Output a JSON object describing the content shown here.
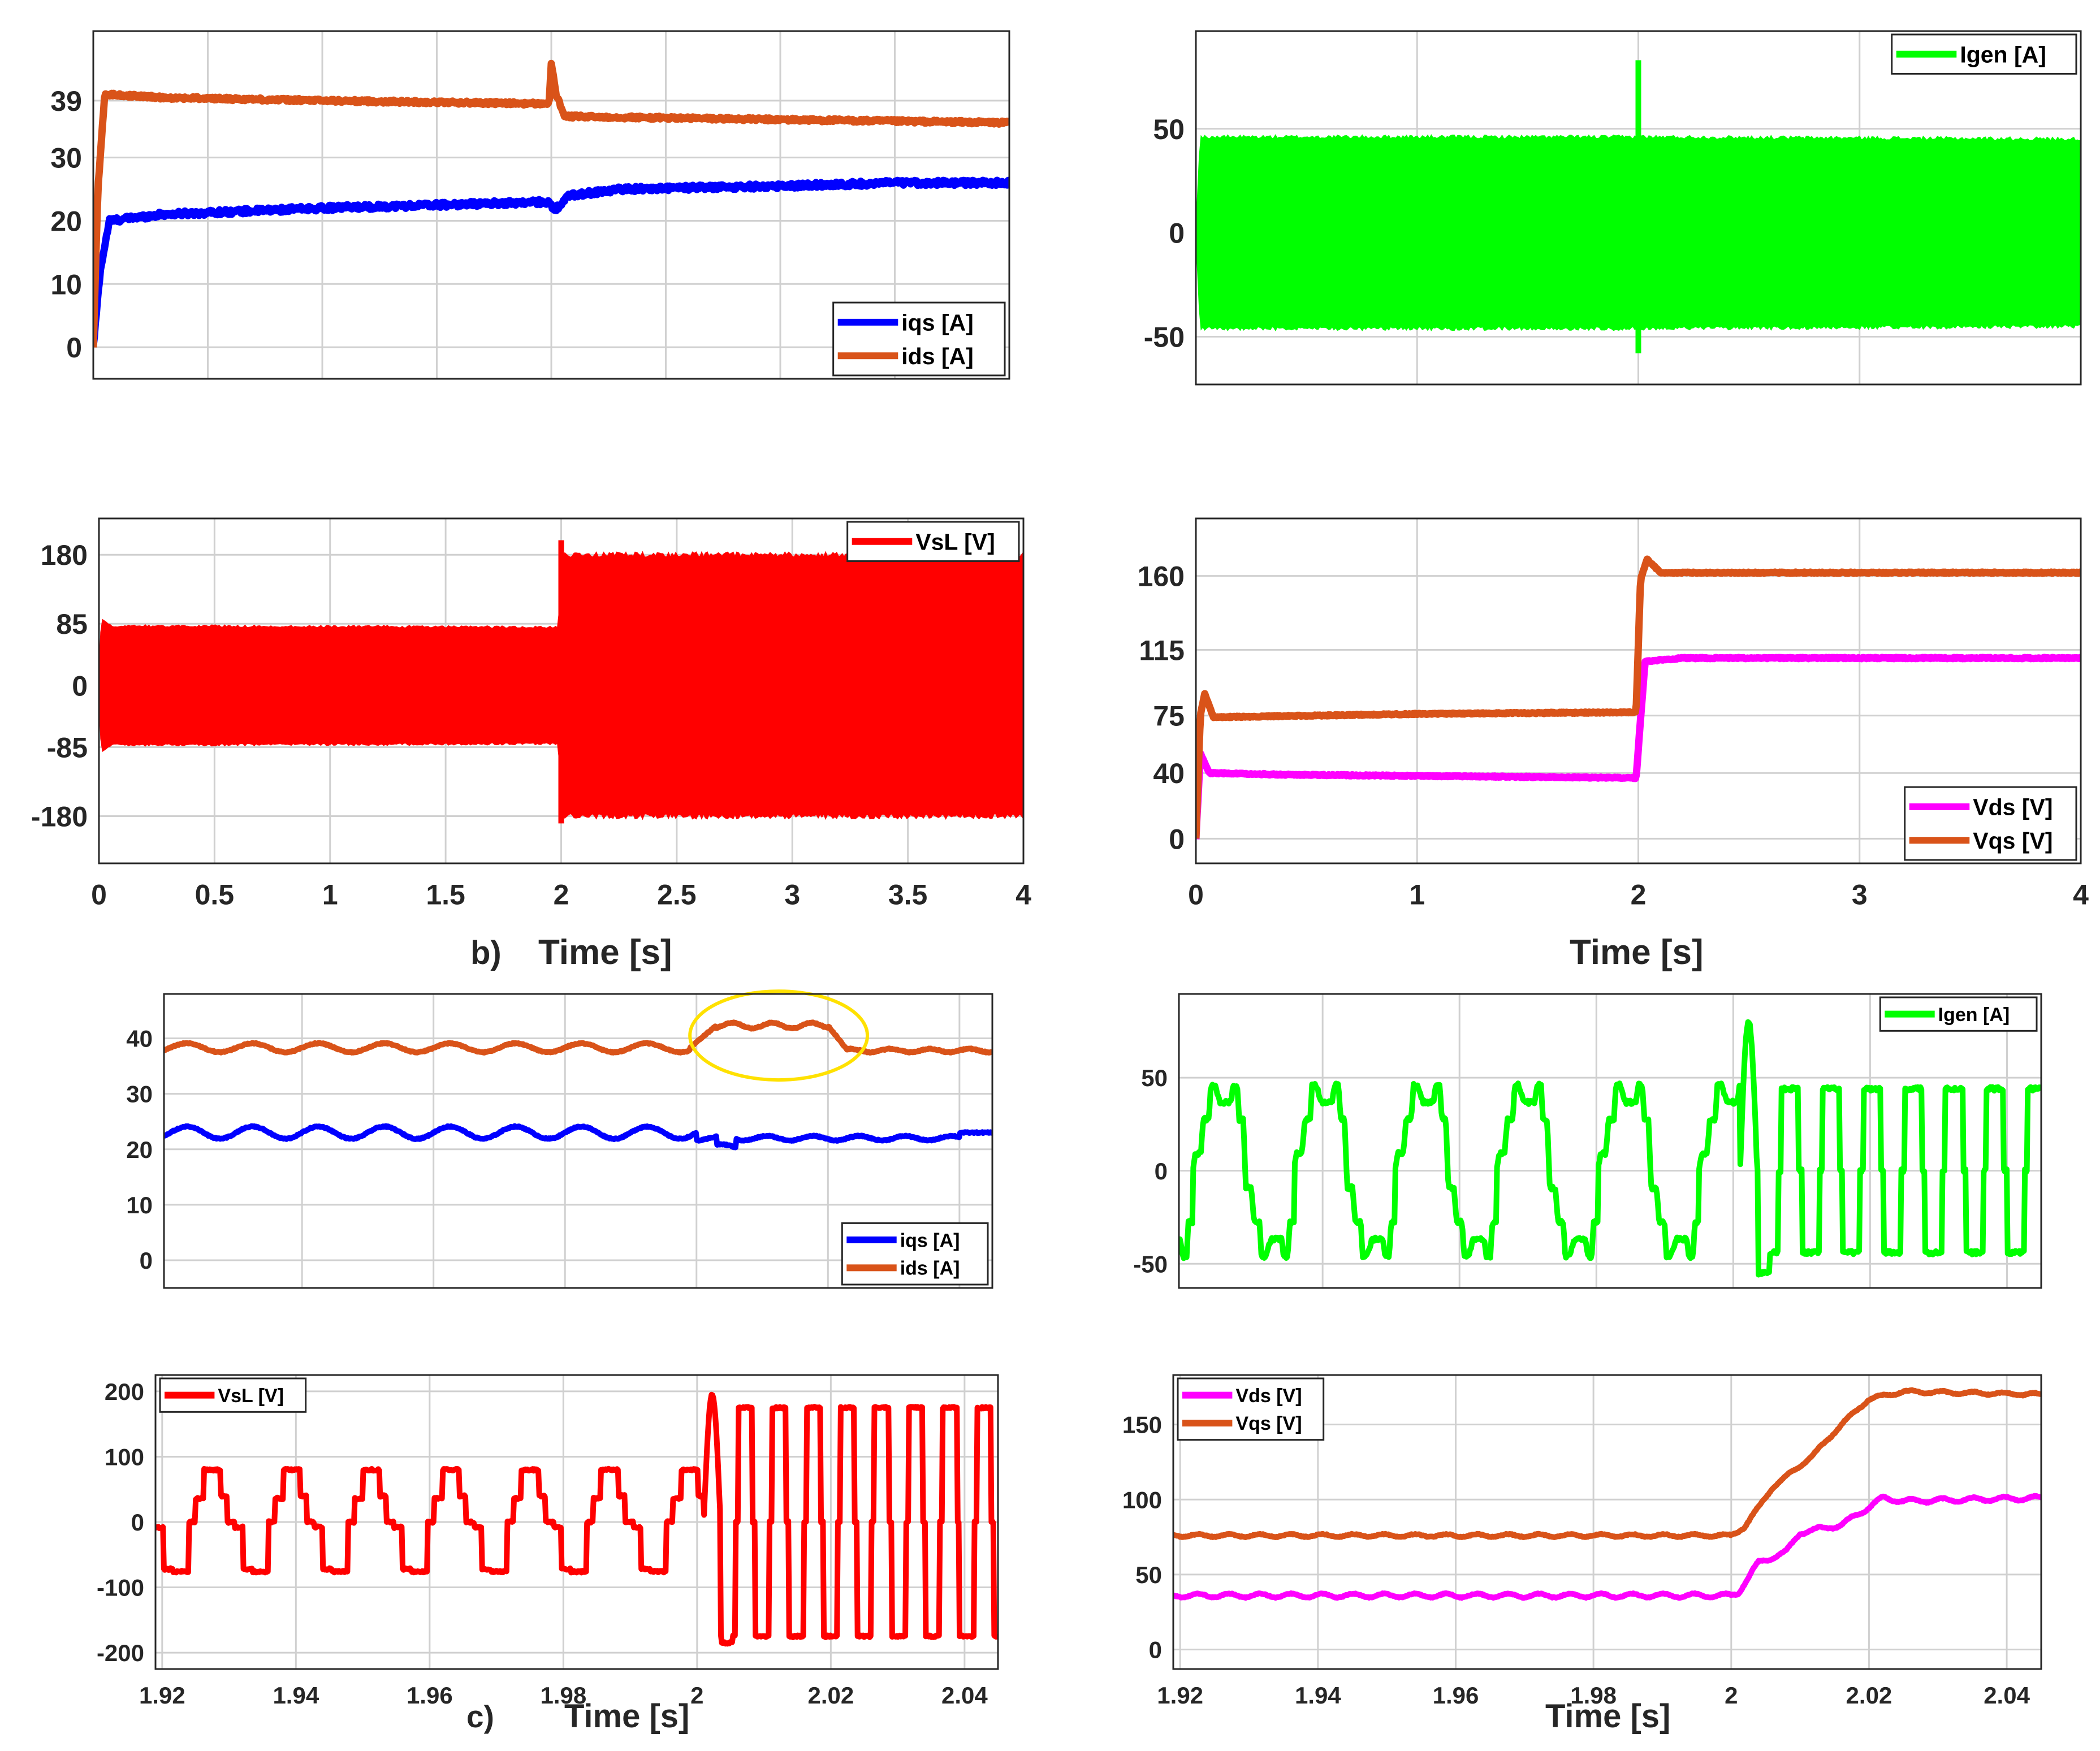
{
  "colors": {
    "blue": "#0000ff",
    "orange": "#d95319",
    "green": "#00ff00",
    "red": "#ff0000",
    "magenta": "#ff00ff",
    "yellow": "#ffe100",
    "grid": "#d0d0d0",
    "axis": "#262626"
  },
  "captions": {
    "b": "b)",
    "c": "c)",
    "time_label": "Time [s]"
  },
  "chart_data": [
    {
      "id": "p1",
      "type": "line",
      "ylim": [
        -5,
        50
      ],
      "xlim": [
        0,
        4
      ],
      "yticks": [
        0,
        10,
        20,
        30,
        39
      ],
      "ytick_labels": [
        "0",
        "10",
        "20",
        "30",
        "39"
      ],
      "xticks": [
        0.5,
        1,
        1.5,
        2,
        2.5,
        3,
        3.5
      ],
      "xtick_labels": [],
      "legend": "bottom-right",
      "series": [
        {
          "name": "iqs [A]",
          "color": "blue",
          "noise": 0.8,
          "points": [
            [
              0,
              0
            ],
            [
              0.03,
              12
            ],
            [
              0.07,
              20
            ],
            [
              0.3,
              21
            ],
            [
              1,
              22
            ],
            [
              1.99,
              23
            ],
            [
              2.01,
              21.5
            ],
            [
              2.08,
              24
            ],
            [
              2.3,
              25
            ],
            [
              3,
              25.5
            ],
            [
              3.5,
              26
            ],
            [
              4,
              26
            ]
          ]
        },
        {
          "name": "ids [A]",
          "color": "orange",
          "noise": 0.5,
          "points": [
            [
              0,
              0
            ],
            [
              0.02,
              25
            ],
            [
              0.05,
              40
            ],
            [
              0.3,
              39.5
            ],
            [
              1,
              39
            ],
            [
              1.99,
              38.5
            ],
            [
              2,
              45
            ],
            [
              2.02,
              40
            ],
            [
              2.06,
              36.5
            ],
            [
              3,
              36
            ],
            [
              4,
              35.5
            ]
          ]
        }
      ]
    },
    {
      "id": "p2",
      "type": "line",
      "ylim": [
        -73,
        97
      ],
      "xlim": [
        0,
        4
      ],
      "yticks": [
        -50,
        0,
        50
      ],
      "ytick_labels": [
        "-50",
        "0",
        "50"
      ],
      "xticks": [
        1,
        2,
        3
      ],
      "xtick_labels": [],
      "legend": "top-right",
      "series": [
        {
          "name": "Igen [A]",
          "color": "green",
          "band": true,
          "upper": [
            [
              0,
              0
            ],
            [
              0.02,
              46
            ],
            [
              2,
              46
            ],
            [
              4,
              45
            ]
          ],
          "lower": [
            [
              0,
              0
            ],
            [
              0.02,
              -46
            ],
            [
              2,
              -46
            ],
            [
              4,
              -45
            ]
          ],
          "spike": [
            2,
            -58,
            83
          ]
        }
      ]
    },
    {
      "id": "p3",
      "type": "line",
      "ylim": [
        -245,
        230
      ],
      "xlim": [
        0,
        4
      ],
      "yticks": [
        -180,
        -85,
        0,
        85,
        180
      ],
      "ytick_labels": [
        "-180",
        "-85",
        "0",
        "85",
        "180"
      ],
      "xticks": [
        0,
        0.5,
        1,
        1.5,
        2,
        2.5,
        3,
        3.5,
        4
      ],
      "xtick_labels": [
        "0",
        "0.5",
        "1",
        "1.5",
        "2",
        "2.5",
        "3",
        "3.5",
        "4"
      ],
      "legend": "top-right",
      "series": [
        {
          "name": "VsL [V]",
          "color": "red",
          "band": true,
          "upper": [
            [
              0,
              0
            ],
            [
              0.01,
              90
            ],
            [
              0.05,
              82
            ],
            [
              1.99,
              80
            ],
            [
              2,
              180
            ],
            [
              4,
              180
            ]
          ],
          "lower": [
            [
              0,
              0
            ],
            [
              0.01,
              -90
            ],
            [
              0.05,
              -82
            ],
            [
              1.99,
              -80
            ],
            [
              2,
              -180
            ],
            [
              4,
              -180
            ]
          ],
          "spike": [
            2,
            -190,
            200
          ]
        }
      ]
    },
    {
      "id": "p4",
      "type": "line",
      "ylim": [
        -15,
        195
      ],
      "xlim": [
        0,
        4
      ],
      "yticks": [
        0,
        40,
        75,
        115,
        160
      ],
      "ytick_labels": [
        "0",
        "40",
        "75",
        "115",
        "160"
      ],
      "xticks": [
        0,
        1,
        2,
        3,
        4
      ],
      "xtick_labels": [
        "0",
        "1",
        "2",
        "3",
        "4"
      ],
      "legend": "bottom-right",
      "series": [
        {
          "name": "Vds [V]",
          "color": "magenta",
          "noise": 0.7,
          "points": [
            [
              0,
              0
            ],
            [
              0.02,
              52
            ],
            [
              0.06,
              40
            ],
            [
              0.4,
              39
            ],
            [
              1.99,
              37
            ],
            [
              2.03,
              108
            ],
            [
              2.2,
              110
            ],
            [
              4,
              110
            ]
          ]
        },
        {
          "name": "Vqs [V]",
          "color": "orange",
          "noise": 0.7,
          "points": [
            [
              0,
              0
            ],
            [
              0.02,
              75
            ],
            [
              0.04,
              88
            ],
            [
              0.08,
              74
            ],
            [
              1,
              76
            ],
            [
              1.99,
              77
            ],
            [
              2.01,
              158
            ],
            [
              2.04,
              170
            ],
            [
              2.1,
              162
            ],
            [
              4,
              162
            ]
          ]
        }
      ]
    },
    {
      "id": "p5",
      "type": "line",
      "ylim": [
        -5,
        48
      ],
      "xlim": [
        1.919,
        2.045
      ],
      "yticks": [
        0,
        10,
        20,
        30,
        40
      ],
      "ytick_labels": [
        "0",
        "10",
        "20",
        "30",
        "40"
      ],
      "xticks": [
        1.94,
        1.96,
        1.98,
        2,
        2.02,
        2.04
      ],
      "xtick_labels": [],
      "legend": "bottom-right",
      "series": [
        {
          "name": "iqs [A]",
          "color": "blue",
          "noise": 0.2,
          "wave": {
            "period": 0.01,
            "pre_mean": 23,
            "pre_amp": 1.1,
            "post_mean": 22,
            "post_amp": 0.4,
            "settle": 2.04,
            "settle_value": 23
          }
        },
        {
          "name": "ids [A]",
          "color": "orange",
          "noise": 0.2,
          "wave": {
            "period": 0.01,
            "pre_mean": 38.3,
            "pre_amp": 0.8,
            "post_mean": 42.3,
            "post_amp": 0.5,
            "end": 2.02,
            "after_mean": 37.8
          }
        }
      ],
      "highlight": {
        "cx": 2.0125,
        "cy": 40.5,
        "rx": 0.0135,
        "ry": 8
      }
    },
    {
      "id": "p6",
      "type": "line",
      "ylim": [
        -63,
        95
      ],
      "xlim": [
        1.919,
        2.045
      ],
      "yticks": [
        -50,
        0,
        50
      ],
      "ytick_labels": [
        "-50",
        "0",
        "50"
      ],
      "xticks": [
        1.94,
        1.96,
        1.98,
        2,
        2.02,
        2.04
      ],
      "xtick_labels": [],
      "legend": "top-right",
      "series": [
        {
          "name": "Igen [A]",
          "color": "green",
          "noise": 2,
          "stepwave": {
            "period_pre": 0.0148,
            "amp_pre": 46,
            "period_post": 0.006,
            "amp_post": 44,
            "switch": 2.001,
            "spike": 80,
            "dip": -55
          }
        }
      ]
    },
    {
      "id": "p7",
      "type": "line",
      "ylim": [
        -225,
        225
      ],
      "xlim": [
        1.919,
        2.045
      ],
      "yticks": [
        -200,
        -100,
        0,
        100,
        200
      ],
      "ytick_labels": [
        "-200",
        "-100",
        "0",
        "100",
        "200"
      ],
      "xticks": [
        1.92,
        1.94,
        1.96,
        1.98,
        2,
        2.02,
        2.04
      ],
      "xtick_labels": [
        "1.92",
        "1.94",
        "1.96",
        "1.98",
        "2",
        "2.02",
        "2.04"
      ],
      "legend": "top-left",
      "series": [
        {
          "name": "VsL [V]",
          "color": "red",
          "noise": 3,
          "stepwave": {
            "period_pre": 0.0119,
            "amp_pre": 80,
            "period_post": 0.0051,
            "amp_post": 175,
            "switch": 2.001,
            "spike": 195,
            "dip": -185
          }
        }
      ]
    },
    {
      "id": "p8",
      "type": "line",
      "ylim": [
        -13,
        183
      ],
      "xlim": [
        1.919,
        2.045
      ],
      "yticks": [
        0,
        50,
        100,
        150
      ],
      "ytick_labels": [
        "0",
        "50",
        "100",
        "150"
      ],
      "xticks": [
        1.92,
        1.94,
        1.96,
        1.98,
        2,
        2.02,
        2.04
      ],
      "xtick_labels": [
        "1.92",
        "1.94",
        "1.96",
        "1.98",
        "2",
        "2.02",
        "2.04"
      ],
      "legend": "top-left",
      "series": [
        {
          "name": "Vds [V]",
          "color": "magenta",
          "noise": 0.6,
          "points": [
            [
              1.919,
              36
            ],
            [
              2.0,
              36
            ],
            [
              2.001,
              38
            ],
            [
              2.004,
              58
            ],
            [
              2.008,
              65
            ],
            [
              2.01,
              78
            ],
            [
              2.016,
              83
            ],
            [
              2.022,
              101
            ],
            [
              2.025,
              99
            ],
            [
              2.045,
              101
            ]
          ],
          "ripple": 1.3
        },
        {
          "name": "Vqs [V]",
          "color": "orange",
          "noise": 0.6,
          "points": [
            [
              1.919,
              76
            ],
            [
              2.0,
              76
            ],
            [
              2.002,
              82
            ],
            [
              2.006,
              108
            ],
            [
              2.012,
              130
            ],
            [
              2.016,
              150
            ],
            [
              2.02,
              167
            ],
            [
              2.025,
              172
            ],
            [
              2.045,
              170
            ]
          ],
          "ripple": 0.9
        }
      ]
    }
  ]
}
